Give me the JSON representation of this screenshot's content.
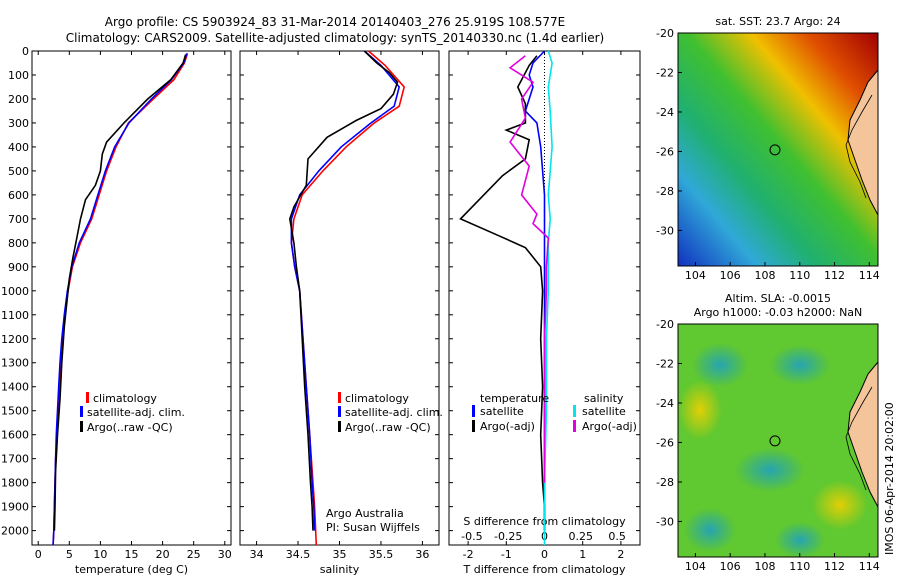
{
  "title_line1": "Argo profile: CS 5903924_83 31-Mar-2014 20140403_276 25.919S 108.577E",
  "title_line2": "Climatology: CARS2009. Satellite-adjusted climatology: synTS_20140330.nc (1.4d earlier)",
  "colors": {
    "climatology": "#ff0000",
    "satellite": "#0000ff",
    "argo": "#000000",
    "sat_salinity": "#00e5ee",
    "argo_salinity": "#e000e0"
  },
  "shared_depth_ticks": [
    "0",
    "100",
    "200",
    "300",
    "400",
    "500",
    "600",
    "700",
    "800",
    "900",
    "1000",
    "1100",
    "1200",
    "1300",
    "1400",
    "1500",
    "1600",
    "1700",
    "1800",
    "1900",
    "2000"
  ],
  "legend_labels": [
    "climatology",
    "satellite-adj. clim.",
    "Argo(..raw -QC)"
  ],
  "diff_legend": {
    "temp_header": "temperature",
    "sal_header": "salinity",
    "satellite": "satellite",
    "argo": "Argo(-adj)"
  },
  "credit": {
    "line1": "Argo Australia",
    "line2": "PI: Susan Wijffels"
  },
  "side_stamp": "IMOS 06-Apr-2014 20:02:00",
  "map_sst": {
    "title": "sat. SST: 23.7 Argo: 24",
    "xticks": [
      "104",
      "106",
      "108",
      "110",
      "112",
      "114"
    ],
    "yticks": [
      "-20",
      "-22",
      "-24",
      "-26",
      "-28",
      "-30"
    ],
    "float_lon": 108.577,
    "float_lat": -25.919
  },
  "map_sla": {
    "title1": "Altim. SLA: -0.0015",
    "title2": "Argo h1000: -0.03 h2000: NaN",
    "xticks": [
      "104",
      "106",
      "108",
      "110",
      "112",
      "114"
    ],
    "yticks": [
      "-20",
      "-22",
      "-24",
      "-26",
      "-28",
      "-30"
    ],
    "float_lon": 108.577,
    "float_lat": -25.919
  },
  "chart_data": [
    {
      "type": "line",
      "xlabel": "temperature (deg C)",
      "ylabel": "",
      "xlim": [
        -1,
        31
      ],
      "ylim": [
        2060,
        0
      ],
      "xticks": [
        0,
        5,
        10,
        15,
        20,
        25,
        30
      ],
      "series": [
        {
          "name": "climatology",
          "color": "#ff0000",
          "points": [
            [
              24,
              10
            ],
            [
              23.5,
              50
            ],
            [
              21.8,
              120
            ],
            [
              18.5,
              200
            ],
            [
              14.5,
              300
            ],
            [
              12.5,
              400
            ],
            [
              11,
              500
            ],
            [
              9.8,
              600
            ],
            [
              8.6,
              700
            ],
            [
              6.8,
              800
            ],
            [
              5.5,
              900
            ],
            [
              4.8,
              1000
            ],
            [
              4.3,
              1100
            ],
            [
              3.9,
              1200
            ],
            [
              3.6,
              1300
            ],
            [
              3.4,
              1400
            ],
            [
              3.2,
              1500
            ],
            [
              3.0,
              1600
            ],
            [
              2.8,
              1700
            ],
            [
              2.7,
              1800
            ],
            [
              2.6,
              1900
            ],
            [
              2.5,
              2000
            ],
            [
              2.4,
              2060
            ]
          ]
        },
        {
          "name": "satellite-adj. clim.",
          "color": "#0000ff",
          "points": [
            [
              23.9,
              10
            ],
            [
              23.4,
              50
            ],
            [
              21.4,
              120
            ],
            [
              18.2,
              200
            ],
            [
              14.6,
              300
            ],
            [
              12.3,
              400
            ],
            [
              10.8,
              500
            ],
            [
              9.6,
              600
            ],
            [
              8.4,
              700
            ],
            [
              6.6,
              800
            ],
            [
              5.4,
              900
            ],
            [
              4.7,
              1000
            ],
            [
              4.2,
              1100
            ],
            [
              3.8,
              1200
            ],
            [
              3.5,
              1300
            ],
            [
              3.3,
              1400
            ],
            [
              3.1,
              1500
            ],
            [
              2.9,
              1600
            ],
            [
              2.8,
              1700
            ],
            [
              2.7,
              1800
            ],
            [
              2.6,
              1900
            ],
            [
              2.5,
              2000
            ],
            [
              2.4,
              2060
            ]
          ]
        },
        {
          "name": "Argo(..raw -QC)",
          "color": "#000000",
          "points": [
            [
              23.7,
              15
            ],
            [
              23.3,
              50
            ],
            [
              21.3,
              120
            ],
            [
              17.6,
              200
            ],
            [
              13.8,
              300
            ],
            [
              11.0,
              380
            ],
            [
              10.3,
              430
            ],
            [
              10.0,
              500
            ],
            [
              9.2,
              560
            ],
            [
              7.6,
              620
            ],
            [
              6.8,
              700
            ],
            [
              6.2,
              780
            ],
            [
              5.6,
              860
            ],
            [
              5.0,
              950
            ],
            [
              4.6,
              1050
            ],
            [
              4.2,
              1150
            ],
            [
              3.8,
              1300
            ],
            [
              3.5,
              1450
            ],
            [
              3.1,
              1600
            ],
            [
              2.8,
              1750
            ],
            [
              2.7,
              1900
            ],
            [
              2.6,
              2000
            ]
          ]
        }
      ]
    },
    {
      "type": "line",
      "xlabel": "salinity",
      "ylabel": "",
      "xlim": [
        33.8,
        36.2
      ],
      "ylim": [
        2060,
        0
      ],
      "xticks": [
        34,
        34.5,
        35,
        35.5,
        36
      ],
      "series": [
        {
          "name": "climatology",
          "color": "#ff0000",
          "points": [
            [
              35.35,
              0
            ],
            [
              35.55,
              60
            ],
            [
              35.78,
              150
            ],
            [
              35.72,
              230
            ],
            [
              35.42,
              300
            ],
            [
              35.08,
              400
            ],
            [
              34.8,
              500
            ],
            [
              34.55,
              600
            ],
            [
              34.45,
              700
            ],
            [
              34.42,
              800
            ],
            [
              34.46,
              900
            ],
            [
              34.52,
              1000
            ],
            [
              34.56,
              1200
            ],
            [
              34.6,
              1400
            ],
            [
              34.64,
              1600
            ],
            [
              34.68,
              1800
            ],
            [
              34.7,
              1900
            ],
            [
              34.72,
              2060
            ]
          ]
        },
        {
          "name": "satellite-adj. clim.",
          "color": "#0000ff",
          "points": [
            [
              35.3,
              0
            ],
            [
              35.5,
              60
            ],
            [
              35.72,
              150
            ],
            [
              35.66,
              230
            ],
            [
              35.38,
              300
            ],
            [
              35.02,
              400
            ],
            [
              34.75,
              500
            ],
            [
              34.52,
              600
            ],
            [
              34.42,
              700
            ],
            [
              34.42,
              800
            ],
            [
              34.46,
              900
            ],
            [
              34.52,
              1000
            ],
            [
              34.56,
              1200
            ],
            [
              34.6,
              1400
            ],
            [
              34.64,
              1600
            ],
            [
              34.67,
              1800
            ],
            [
              34.69,
              1900
            ],
            [
              34.7,
              2000
            ]
          ]
        },
        {
          "name": "Argo(..raw -QC)",
          "color": "#000000",
          "points": [
            [
              35.3,
              0
            ],
            [
              35.45,
              50
            ],
            [
              35.6,
              90
            ],
            [
              35.7,
              130
            ],
            [
              35.65,
              180
            ],
            [
              35.5,
              240
            ],
            [
              35.2,
              290
            ],
            [
              34.85,
              360
            ],
            [
              34.62,
              450
            ],
            [
              34.6,
              560
            ],
            [
              34.45,
              650
            ],
            [
              34.4,
              700
            ],
            [
              34.45,
              800
            ],
            [
              34.48,
              900
            ],
            [
              34.52,
              1000
            ],
            [
              34.55,
              1200
            ],
            [
              34.58,
              1400
            ],
            [
              34.62,
              1600
            ],
            [
              34.65,
              1800
            ],
            [
              34.67,
              1900
            ],
            [
              34.68,
              2000
            ]
          ]
        }
      ]
    },
    {
      "type": "line",
      "xlabel": "T difference from climatology",
      "ylabel": "",
      "xlim": [
        -2.5,
        2.5
      ],
      "ylim": [
        2060,
        0
      ],
      "xticks": [
        -2,
        -1,
        0,
        1,
        2
      ],
      "top_xlabel": "S difference from climatology",
      "top_xticks": [
        "-0.5",
        "-0.25",
        "0",
        "0.25",
        "0.5"
      ],
      "top_xticks_pos": [
        -1.9,
        -0.95,
        0,
        0.95,
        1.9
      ],
      "series": [
        {
          "name": "satellite",
          "group": "temperature",
          "color": "#0000ff",
          "points": [
            [
              0.0,
              0
            ],
            [
              -0.3,
              50
            ],
            [
              -0.4,
              100
            ],
            [
              -0.3,
              150
            ],
            [
              -0.4,
              200
            ],
            [
              -0.5,
              250
            ],
            [
              -0.2,
              300
            ],
            [
              -0.1,
              400
            ],
            [
              -0.05,
              500
            ],
            [
              0,
              600
            ],
            [
              0,
              800
            ],
            [
              0,
              1000
            ],
            [
              0,
              1500
            ],
            [
              0,
              2000
            ]
          ]
        },
        {
          "name": "Argo(-adj)",
          "group": "temperature",
          "color": "#000000",
          "points": [
            [
              -0.2,
              20
            ],
            [
              -0.4,
              60
            ],
            [
              -0.7,
              150
            ],
            [
              -0.5,
              220
            ],
            [
              -0.5,
              300
            ],
            [
              -1.0,
              330
            ],
            [
              -0.4,
              370
            ],
            [
              -0.5,
              450
            ],
            [
              -1.1,
              520
            ],
            [
              -2.2,
              700
            ],
            [
              -1.2,
              770
            ],
            [
              -0.5,
              820
            ],
            [
              -0.1,
              900
            ],
            [
              -0.05,
              1000
            ],
            [
              -0.1,
              1200
            ],
            [
              -0.05,
              1400
            ],
            [
              -0.1,
              1600
            ],
            [
              -0.05,
              1800
            ],
            [
              0,
              1900
            ],
            [
              0,
              2000
            ]
          ]
        },
        {
          "name": "satellite",
          "group": "salinity",
          "color": "#00e5ee",
          "points": [
            [
              0.1,
              0
            ],
            [
              0.2,
              50
            ],
            [
              0.1,
              150
            ],
            [
              0.15,
              250
            ],
            [
              0.2,
              400
            ],
            [
              0.15,
              500
            ],
            [
              0.1,
              600
            ],
            [
              0.15,
              700
            ],
            [
              0.1,
              800
            ],
            [
              0.1,
              1000
            ],
            [
              0.05,
              1200
            ],
            [
              0.05,
              1500
            ],
            [
              0.0,
              1800
            ],
            [
              0.0,
              2000
            ],
            [
              0.0,
              2060
            ]
          ]
        },
        {
          "name": "Argo(-adj)",
          "group": "salinity",
          "color": "#e000e0",
          "points": [
            [
              -0.5,
              20
            ],
            [
              -0.9,
              70
            ],
            [
              -0.3,
              130
            ],
            [
              -0.6,
              200
            ],
            [
              -0.5,
              280
            ],
            [
              -0.9,
              380
            ],
            [
              -0.4,
              480
            ],
            [
              -0.6,
              600
            ],
            [
              -0.2,
              680
            ],
            [
              -0.3,
              720
            ],
            [
              0.1,
              780
            ],
            [
              0.05,
              900
            ],
            [
              0.05,
              1000
            ],
            [
              0,
              1200
            ],
            [
              0,
              1500
            ],
            [
              0,
              1800
            ]
          ]
        }
      ]
    }
  ]
}
